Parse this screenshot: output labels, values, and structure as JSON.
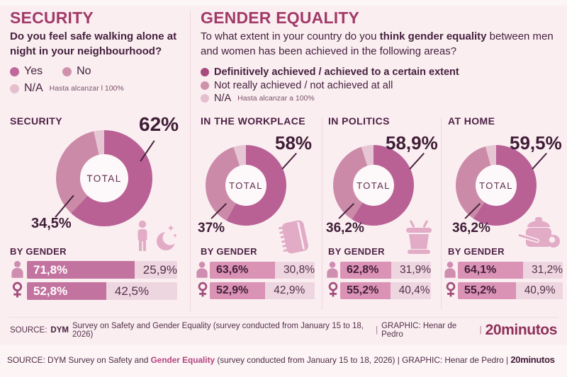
{
  "colors": {
    "slice_dark": "#b96195",
    "slice_mid": "#cb8ba8",
    "slice_light": "#e7c6d4",
    "accent_title": "#a23a68",
    "bar_dark_security": "#c3739f",
    "bar_dark_equality": "#da92b5",
    "bar_light": "#eed6e0"
  },
  "security_panel": {
    "title": "SECURITY",
    "question": "Do you feel safe walking alone at night in your neighbourhood?",
    "legend": [
      {
        "label": "Yes",
        "color": "#bf679b"
      },
      {
        "label": "No",
        "color": "#cf92ad"
      },
      {
        "label": "N/A",
        "note": "Hasta alcanzar l 100%",
        "color": "#e4bfce"
      }
    ]
  },
  "equality_panel": {
    "title": "GENDER EQUALITY",
    "question_pre": "To what extent in your country do you ",
    "question_bold": "think gender equality",
    "question_post": " between men and women has been achieved in the following areas?",
    "legend": [
      {
        "label": "Definitively achieved / achieved to a certain extent",
        "color": "#a84a7d",
        "bold": true
      },
      {
        "label": "Not really achieved / not achieved at all",
        "color": "#cf92ad"
      },
      {
        "label": "N/A",
        "note": "Hasta alcanzar a 100%",
        "color": "#e4bfce"
      }
    ]
  },
  "chart_data": [
    {
      "type": "donut",
      "title": "SECURITY",
      "center_label": "TOTAL",
      "icon": "person-and-moon",
      "slices": [
        {
          "name": "Yes",
          "value": 62,
          "label": "62%"
        },
        {
          "name": "No",
          "value": 34.5,
          "label": "34,5%"
        },
        {
          "name": "N/A",
          "value": 3.5,
          "label": ""
        }
      ],
      "by_gender": {
        "heading": "BY GENDER",
        "rows": [
          {
            "gender": "men",
            "primary_label": "71,8%",
            "primary_value": 71.8,
            "secondary_label": "25,9%",
            "secondary_value": 25.9
          },
          {
            "gender": "women",
            "primary_label": "52,8%",
            "primary_value": 52.8,
            "secondary_label": "42,5%",
            "secondary_value": 42.5
          }
        ]
      }
    },
    {
      "type": "donut",
      "title": "IN THE WORKPLACE",
      "center_label": "TOTAL",
      "icon": "notebook",
      "slices": [
        {
          "name": "Achieved",
          "value": 58,
          "label": "58%"
        },
        {
          "name": "Not achieved",
          "value": 37,
          "label": "37%"
        },
        {
          "name": "N/A",
          "value": 5,
          "label": ""
        }
      ],
      "by_gender": {
        "heading": "BY GENDER",
        "rows": [
          {
            "gender": "men",
            "primary_label": "63,6%",
            "primary_value": 63.6,
            "secondary_label": "30,8%",
            "secondary_value": 30.8
          },
          {
            "gender": "women",
            "primary_label": "52,9%",
            "primary_value": 52.9,
            "secondary_label": "42,9%",
            "secondary_value": 42.9
          }
        ]
      }
    },
    {
      "type": "donut",
      "title": "IN POLITICS",
      "center_label": "TOTAL",
      "icon": "ballot-box",
      "slices": [
        {
          "name": "Achieved",
          "value": 58.9,
          "label": "58,9%"
        },
        {
          "name": "Not achieved",
          "value": 36.2,
          "label": "36,2%"
        },
        {
          "name": "N/A",
          "value": 4.9,
          "label": ""
        }
      ],
      "by_gender": {
        "heading": "BY GENDER",
        "rows": [
          {
            "gender": "men",
            "primary_label": "62,8%",
            "primary_value": 62.8,
            "secondary_label": "31,9%",
            "secondary_value": 31.9
          },
          {
            "gender": "women",
            "primary_label": "55,2%",
            "primary_value": 55.2,
            "secondary_label": "40,4%",
            "secondary_value": 40.4
          }
        ]
      }
    },
    {
      "type": "donut",
      "title": "AT HOME",
      "center_label": "TOTAL",
      "icon": "cooking-pot",
      "slices": [
        {
          "name": "Achieved",
          "value": 59.5,
          "label": "59,5%"
        },
        {
          "name": "Not achieved",
          "value": 36.2,
          "label": "36,2%"
        },
        {
          "name": "N/A",
          "value": 4.3,
          "label": ""
        }
      ],
      "by_gender": {
        "heading": "BY GENDER",
        "rows": [
          {
            "gender": "men",
            "primary_label": "64,1%",
            "primary_value": 64.1,
            "secondary_label": "31,2%",
            "secondary_value": 31.2
          },
          {
            "gender": "women",
            "primary_label": "55,2%",
            "primary_value": 55.2,
            "secondary_label": "40,9%",
            "secondary_value": 40.9
          }
        ]
      }
    }
  ],
  "footer": {
    "line1": {
      "source_label": "SOURCE:",
      "source_bold": "DYM",
      "source_rest": "Survey on Safety and Gender Equality (survey conducted from January 15 to 18, 2026)",
      "sep1": "|",
      "graphic": "GRAPHIC: Henar de Pedro",
      "sep2": "|",
      "logo": "20minutos"
    },
    "line2": {
      "pre": "SOURCE: DYM Survey on Safety and ",
      "highlight": "Gender Equality",
      "post": " (survey conducted from January 15 to 18, 2026)  |  GRAPHIC: Henar de Pedro |  ",
      "logo": "20minutos"
    }
  }
}
